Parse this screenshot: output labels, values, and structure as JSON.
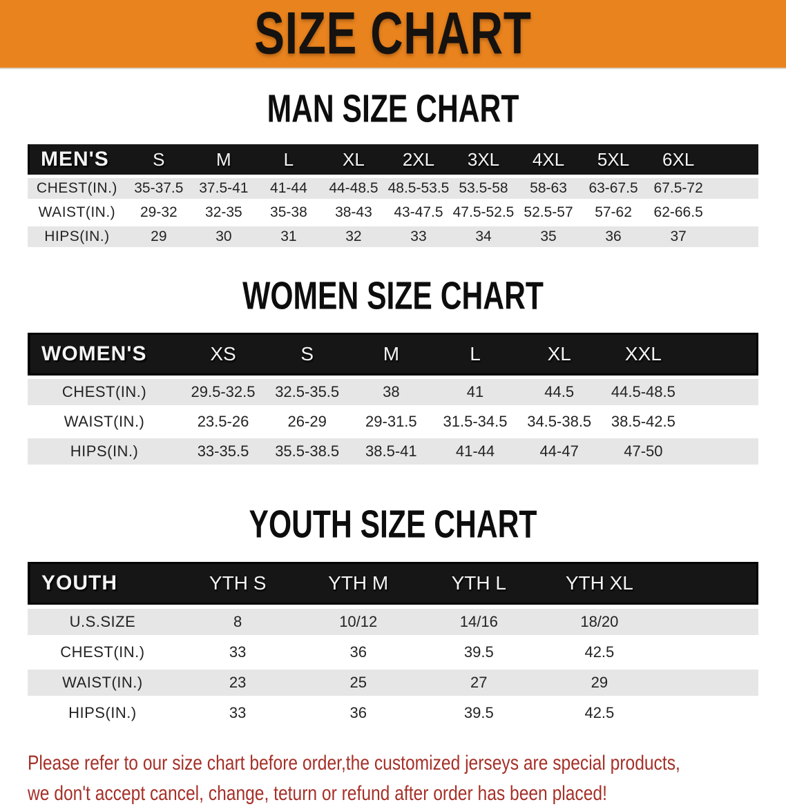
{
  "banner": {
    "title": "SIZE CHART"
  },
  "colors": {
    "banner_bg": "#E8831E",
    "table_header_bg": "#161616",
    "row_gray": "#e6e6e6",
    "notice_red": "#A53028"
  },
  "sections": [
    {
      "title": "MAN SIZE CHART",
      "table": {
        "header_label": "MEN'S",
        "columns": [
          "S",
          "M",
          "L",
          "XL",
          "2XL",
          "3XL",
          "4XL",
          "5XL",
          "6XL"
        ],
        "rows": [
          {
            "label": "CHEST(IN.)",
            "values": [
              "35-37.5",
              "37.5-41",
              "41-44",
              "44-48.5",
              "48.5-53.5",
              "53.5-58",
              "58-63",
              "63-67.5",
              "67.5-72"
            ]
          },
          {
            "label": "WAIST(IN.)",
            "values": [
              "29-32",
              "32-35",
              "35-38",
              "38-43",
              "43-47.5",
              "47.5-52.5",
              "52.5-57",
              "57-62",
              "62-66.5"
            ]
          },
          {
            "label": "HIPS(IN.)",
            "values": [
              "29",
              "30",
              "31",
              "32",
              "33",
              "34",
              "35",
              "36",
              "37"
            ]
          }
        ]
      }
    },
    {
      "title": "WOMEN SIZE CHART",
      "table": {
        "header_label": "WOMEN'S",
        "columns": [
          "XS",
          "S",
          "M",
          "L",
          "XL",
          "XXL"
        ],
        "rows": [
          {
            "label": "CHEST(IN.)",
            "values": [
              "29.5-32.5",
              "32.5-35.5",
              "38",
              "41",
              "44.5",
              "44.5-48.5"
            ]
          },
          {
            "label": "WAIST(IN.)",
            "values": [
              "23.5-26",
              "26-29",
              "29-31.5",
              "31.5-34.5",
              "34.5-38.5",
              "38.5-42.5"
            ]
          },
          {
            "label": "HIPS(IN.)",
            "values": [
              "33-35.5",
              "35.5-38.5",
              "38.5-41",
              "41-44",
              "44-47",
              "47-50"
            ]
          }
        ]
      }
    },
    {
      "title": "YOUTH SIZE CHART",
      "table": {
        "header_label": "YOUTH",
        "columns": [
          "YTH S",
          "YTH M",
          "YTH L",
          "YTH XL"
        ],
        "rows": [
          {
            "label": "U.S.SIZE",
            "values": [
              "8",
              "10/12",
              "14/16",
              "18/20"
            ]
          },
          {
            "label": "CHEST(IN.)",
            "values": [
              "33",
              "36",
              "39.5",
              "42.5"
            ]
          },
          {
            "label": "WAIST(IN.)",
            "values": [
              "23",
              "25",
              "27",
              "29"
            ]
          },
          {
            "label": "HIPS(IN.)",
            "values": [
              "33",
              "36",
              "39.5",
              "42.5"
            ]
          }
        ]
      }
    }
  ],
  "footer": {
    "line1": "Please refer to our size chart before order,the customized jerseys are special products,",
    "line2": "we don't accept cancel, change, teturn or refund after order has been placed!"
  }
}
